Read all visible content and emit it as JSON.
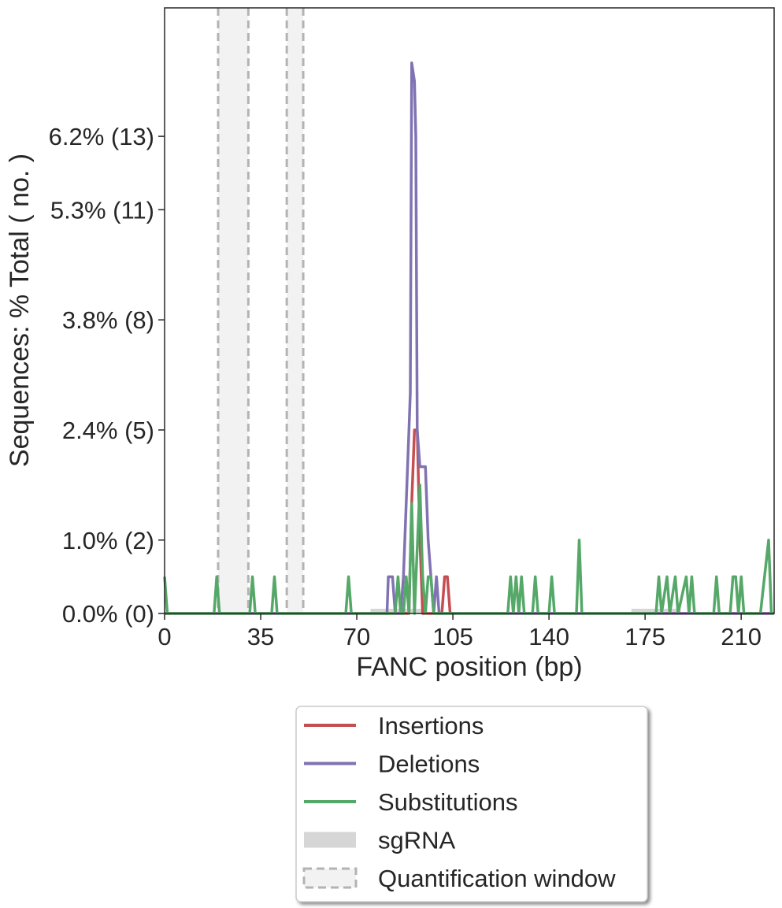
{
  "chart_data": {
    "type": "line",
    "title": "",
    "xlabel": "FANC position (bp)",
    "ylabel": "Sequences: % Total ( no. )",
    "xlim": [
      0,
      222
    ],
    "ylim": [
      0,
      16.5
    ],
    "x_ticks": [
      0,
      35,
      70,
      105,
      140,
      175,
      210
    ],
    "x_tick_labels": [
      "0",
      "35",
      "70",
      "105",
      "140",
      "175",
      "210"
    ],
    "y_ticks": [
      0,
      2,
      5,
      8,
      11,
      13
    ],
    "y_tick_labels": [
      "0.0% (0)",
      "1.0% (2)",
      "2.4% (5)",
      "3.8% (8)",
      "5.3% (11)",
      "6.2% (13)"
    ],
    "series": [
      {
        "name": "Insertions",
        "color": "#c44e52",
        "points": [
          [
            0,
            0
          ],
          [
            88,
            0
          ],
          [
            89,
            0
          ],
          [
            90,
            3
          ],
          [
            91,
            5
          ],
          [
            92,
            5
          ],
          [
            93,
            2
          ],
          [
            94,
            0
          ],
          [
            101,
            0
          ],
          [
            102,
            1
          ],
          [
            103,
            1
          ],
          [
            104,
            0
          ],
          [
            222,
            0
          ]
        ]
      },
      {
        "name": "Deletions",
        "color": "#8172b2",
        "points": [
          [
            0,
            0
          ],
          [
            80,
            0
          ],
          [
            81,
            0
          ],
          [
            81.5,
            1
          ],
          [
            83,
            1
          ],
          [
            84,
            0
          ],
          [
            86,
            0
          ],
          [
            87,
            1
          ],
          [
            88,
            3
          ],
          [
            89,
            5
          ],
          [
            89.5,
            6
          ],
          [
            90,
            15
          ],
          [
            91,
            14.5
          ],
          [
            91.5,
            13
          ],
          [
            92,
            5
          ],
          [
            93,
            4
          ],
          [
            94,
            4
          ],
          [
            95,
            4
          ],
          [
            96,
            2
          ],
          [
            97,
            1
          ],
          [
            98,
            0
          ],
          [
            99,
            1
          ],
          [
            100,
            0
          ],
          [
            222,
            0
          ]
        ]
      },
      {
        "name": "Substitutions",
        "color": "#55a868",
        "points": [
          [
            0,
            1
          ],
          [
            1,
            0
          ],
          [
            18,
            0
          ],
          [
            19,
            1
          ],
          [
            20,
            0
          ],
          [
            31,
            0
          ],
          [
            32,
            1
          ],
          [
            33,
            0
          ],
          [
            39,
            0
          ],
          [
            40,
            1
          ],
          [
            41,
            0
          ],
          [
            66,
            0
          ],
          [
            67,
            1
          ],
          [
            68,
            0
          ],
          [
            84,
            0
          ],
          [
            85,
            1
          ],
          [
            86,
            0
          ],
          [
            87,
            0
          ],
          [
            88,
            1
          ],
          [
            89,
            0
          ],
          [
            90,
            3
          ],
          [
            91,
            0
          ],
          [
            93,
            3.5
          ],
          [
            94,
            1
          ],
          [
            95,
            0
          ],
          [
            96,
            1
          ],
          [
            97,
            1
          ],
          [
            98,
            0
          ],
          [
            125,
            0
          ],
          [
            126,
            1
          ],
          [
            127,
            0
          ],
          [
            128,
            1
          ],
          [
            129,
            0
          ],
          [
            130,
            1
          ],
          [
            131,
            0
          ],
          [
            134,
            0
          ],
          [
            135,
            1
          ],
          [
            136,
            0
          ],
          [
            140,
            0
          ],
          [
            141,
            1
          ],
          [
            142,
            0
          ],
          [
            150,
            0
          ],
          [
            151,
            2
          ],
          [
            152,
            0
          ],
          [
            179,
            0
          ],
          [
            180,
            1
          ],
          [
            181,
            0
          ],
          [
            183,
            1
          ],
          [
            184,
            0
          ],
          [
            186,
            1
          ],
          [
            187,
            0
          ],
          [
            190,
            1
          ],
          [
            191,
            0
          ],
          [
            192,
            1
          ],
          [
            193,
            0
          ],
          [
            200,
            0
          ],
          [
            201,
            1
          ],
          [
            202,
            0
          ],
          [
            206,
            0
          ],
          [
            207,
            1
          ],
          [
            208,
            1
          ],
          [
            209,
            0
          ],
          [
            210,
            1
          ],
          [
            211,
            0
          ],
          [
            217,
            0
          ],
          [
            220,
            2
          ],
          [
            221,
            0
          ],
          [
            222,
            0
          ]
        ]
      }
    ],
    "sgrna_regions": [
      [
        75,
        94
      ],
      [
        170,
        188
      ]
    ],
    "quantification_windows": [
      [
        19.5,
        30.5
      ],
      [
        44.5,
        50.5
      ]
    ],
    "legend": {
      "placement": "below",
      "entries": [
        "Insertions",
        "Deletions",
        "Substitutions",
        "sgRNA",
        "Quantification window"
      ]
    },
    "colors": {
      "sgrna": "#d6d6d6",
      "window_fill": "#f2f2f2",
      "window_edge": "#b3b3b3",
      "axis": "#262626"
    },
    "grid": false
  }
}
